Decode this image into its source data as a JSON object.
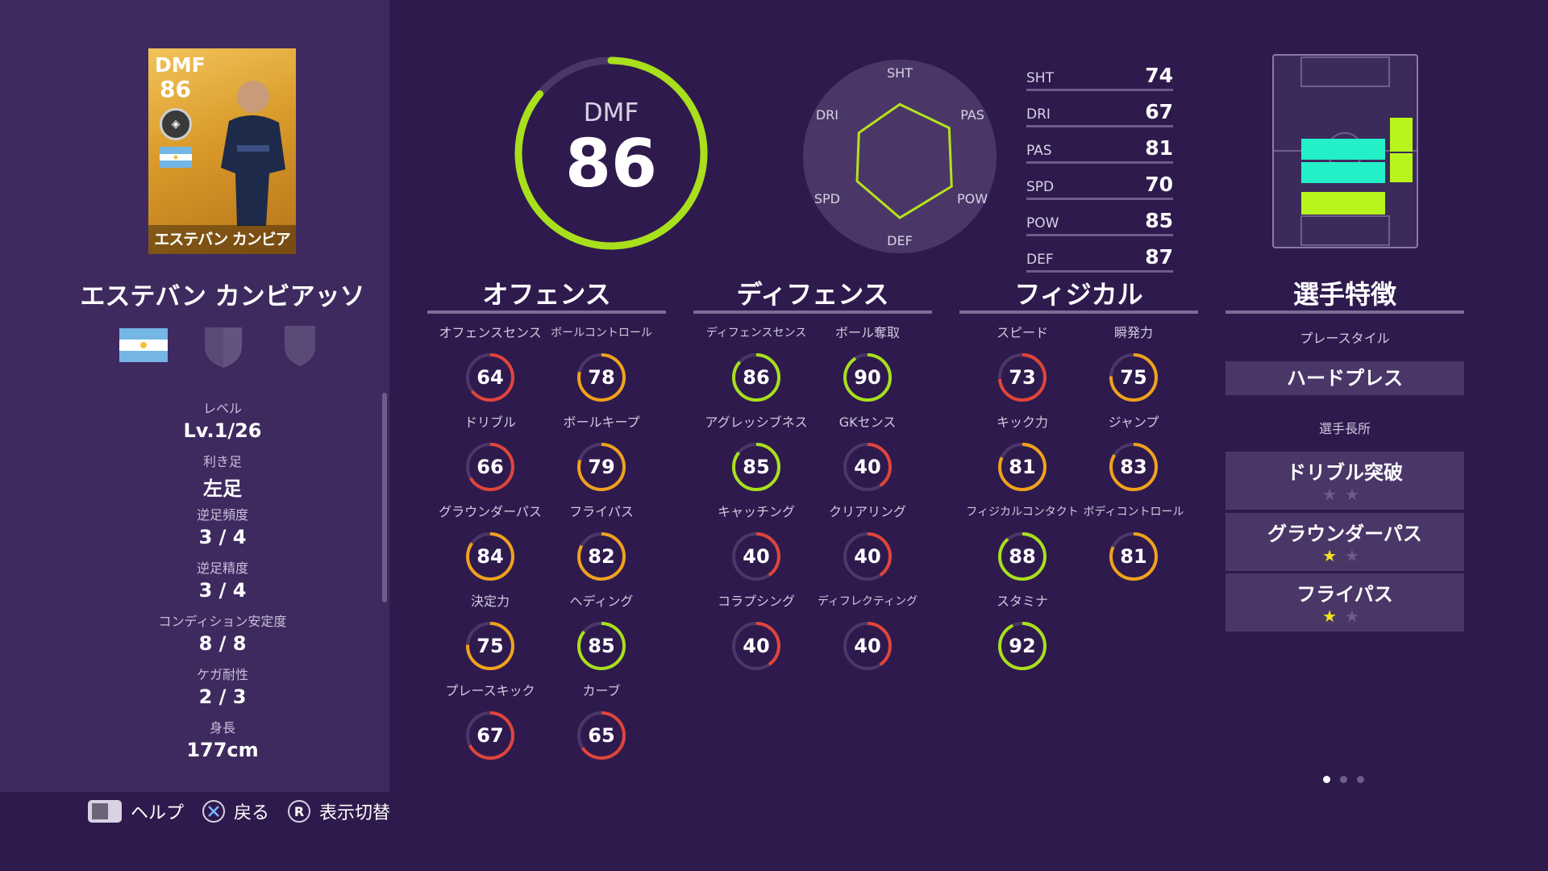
{
  "player": {
    "card_position": "DMF",
    "card_rating": "86",
    "card_name": "エステバン カンビアッソ",
    "name": "エステバン カンビアッソ"
  },
  "info": [
    {
      "label": "レベル",
      "value": "Lv.1/26"
    },
    {
      "label": "利き足",
      "value": "左足"
    },
    {
      "label": "逆足頻度",
      "value": "3 / 4"
    },
    {
      "label": "逆足精度",
      "value": "3 / 4"
    },
    {
      "label": "コンディション安定度",
      "value": "8 / 8"
    },
    {
      "label": "ケガ耐性",
      "value": "2 / 3"
    },
    {
      "label": "身長",
      "value": "177cm"
    }
  ],
  "overall": {
    "position": "DMF",
    "rating": "86",
    "fraction": 0.86
  },
  "radar": {
    "labels": [
      "SHT",
      "PAS",
      "POW",
      "DEF",
      "SPD",
      "DRI"
    ],
    "values": [
      74,
      81,
      85,
      87,
      70,
      67
    ],
    "stats": [
      {
        "key": "SHT",
        "value": "74"
      },
      {
        "key": "DRI",
        "value": "67"
      },
      {
        "key": "PAS",
        "value": "81"
      },
      {
        "key": "SPD",
        "value": "70"
      },
      {
        "key": "POW",
        "value": "85"
      },
      {
        "key": "DEF",
        "value": "87"
      }
    ]
  },
  "columns": [
    {
      "title": "オフェンス",
      "stats": [
        {
          "label": "オフェンスセンス",
          "value": "64"
        },
        {
          "label": "ボールコントロール",
          "value": "78"
        },
        {
          "label": "ドリブル",
          "value": "66"
        },
        {
          "label": "ボールキープ",
          "value": "79"
        },
        {
          "label": "グラウンダーパス",
          "value": "84"
        },
        {
          "label": "フライパス",
          "value": "82"
        },
        {
          "label": "決定力",
          "value": "75"
        },
        {
          "label": "ヘディング",
          "value": "85"
        },
        {
          "label": "プレースキック",
          "value": "67"
        },
        {
          "label": "カーブ",
          "value": "65"
        }
      ]
    },
    {
      "title": "ディフェンス",
      "stats": [
        {
          "label": "ディフェンスセンス",
          "value": "86"
        },
        {
          "label": "ボール奪取",
          "value": "90"
        },
        {
          "label": "アグレッシブネス",
          "value": "85"
        },
        {
          "label": "GKセンス",
          "value": "40"
        },
        {
          "label": "キャッチング",
          "value": "40"
        },
        {
          "label": "クリアリング",
          "value": "40"
        },
        {
          "label": "コラプシング",
          "value": "40"
        },
        {
          "label": "ディフレクティング",
          "value": "40"
        }
      ]
    },
    {
      "title": "フィジカル",
      "stats": [
        {
          "label": "スピード",
          "value": "73"
        },
        {
          "label": "瞬発力",
          "value": "75"
        },
        {
          "label": "キック力",
          "value": "81"
        },
        {
          "label": "ジャンプ",
          "value": "83"
        },
        {
          "label": "フィジカルコンタクト",
          "value": "88"
        },
        {
          "label": "ボディコントロール",
          "value": "81"
        },
        {
          "label": "スタミナ",
          "value": "92"
        }
      ]
    }
  ],
  "traits": {
    "title": "選手特徴",
    "playstyle_label": "プレースタイル",
    "playstyle": "ハードプレス",
    "skills_label": "選手長所",
    "skills": [
      {
        "name": "ドリブル突破",
        "stars": 0
      },
      {
        "name": "グラウンダーパス",
        "stars": 1
      },
      {
        "name": "フライパス",
        "stars": 1
      }
    ]
  },
  "footer": {
    "help": "ヘルプ",
    "back": "戻る",
    "r_glyph": "R",
    "toggle": "表示切替"
  },
  "colors": {
    "high": "#a8e01c",
    "mid": "#f0a21c",
    "low": "#e0453a",
    "radar_line": "#b6e21a",
    "pitch_cyan": "#24f0c8",
    "pitch_green": "#b8f51c"
  }
}
